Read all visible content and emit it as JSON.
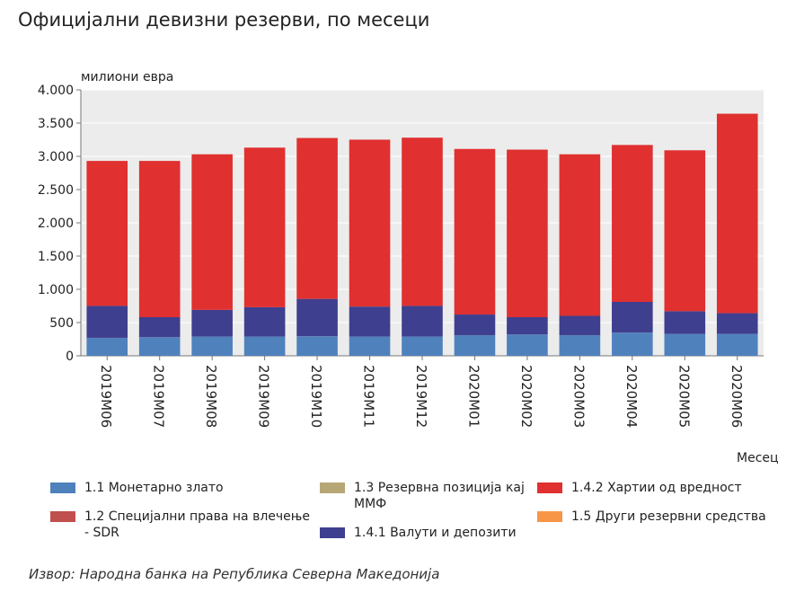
{
  "title": "Официјални девизни резерви, по месеци",
  "source": "Извор: Народна банка на Република Северна Македонија",
  "chart_data": {
    "type": "bar",
    "stacked": true,
    "title": "Официјални девизни резерви, по месеци",
    "ylabel": "милиони евра",
    "xlabel": "Месец",
    "ylim": [
      0,
      4000
    ],
    "yticks": [
      0,
      500,
      1000,
      1500,
      2000,
      2500,
      3000,
      3500,
      4000
    ],
    "ytick_labels": [
      "0",
      "500",
      "1.000",
      "1.500",
      "2.000",
      "2.500",
      "3.000",
      "3.500",
      "4.000"
    ],
    "grid": true,
    "legend_position": "bottom",
    "categories": [
      "2019M06",
      "2019M07",
      "2019M08",
      "2019M09",
      "2019M10",
      "2019M11",
      "2019M12",
      "2020M01",
      "2020M02",
      "2020M03",
      "2020M04",
      "2020M05",
      "2020M06"
    ],
    "series": [
      {
        "name": "1.1 Монетарно злато",
        "color": "#4f81bd",
        "values": [
          270,
          280,
          290,
          290,
          295,
          290,
          290,
          310,
          320,
          310,
          350,
          330,
          330
        ]
      },
      {
        "name": "1.2 Специјални права на влечење - SDR",
        "color": "#c0504d",
        "values": [
          1,
          1,
          1,
          1,
          1,
          1,
          1,
          1,
          1,
          1,
          1,
          1,
          1
        ]
      },
      {
        "name": "1.3 Резервна позиција кај ММФ",
        "color": "#b8a776",
        "values": [
          0,
          0,
          0,
          0,
          0,
          0,
          0,
          0,
          0,
          0,
          0,
          0,
          0
        ]
      },
      {
        "name": "1.4.1 Валути и депозити",
        "color": "#3f3f8f",
        "values": [
          480,
          300,
          400,
          440,
          560,
          450,
          460,
          310,
          260,
          290,
          460,
          340,
          310
        ]
      },
      {
        "name": "1.4.2 Хартии од вредност",
        "color": "#e03030",
        "values": [
          2180,
          2350,
          2340,
          2400,
          2420,
          2510,
          2530,
          2490,
          2520,
          2430,
          2360,
          2420,
          3000
        ]
      },
      {
        "name": "1.5 Други резервни средства",
        "color": "#f79646",
        "values": [
          0,
          0,
          0,
          0,
          0,
          0,
          0,
          0,
          0,
          0,
          0,
          0,
          0
        ]
      }
    ]
  },
  "legend": [
    {
      "text": "1.1 Монетарно злато",
      "color": "#4f81bd"
    },
    {
      "text": "1.2 Специјални права на влечење - SDR",
      "color": "#c0504d"
    },
    {
      "text": "1.3 Резервна позиција кај ММФ",
      "color": "#b8a776"
    },
    {
      "text": "1.4.1 Валути и депозити",
      "color": "#3f3f8f"
    },
    {
      "text": "1.4.2 Хартии од вредност",
      "color": "#e03030"
    },
    {
      "text": "1.5 Други резервни средства",
      "color": "#f79646"
    }
  ]
}
